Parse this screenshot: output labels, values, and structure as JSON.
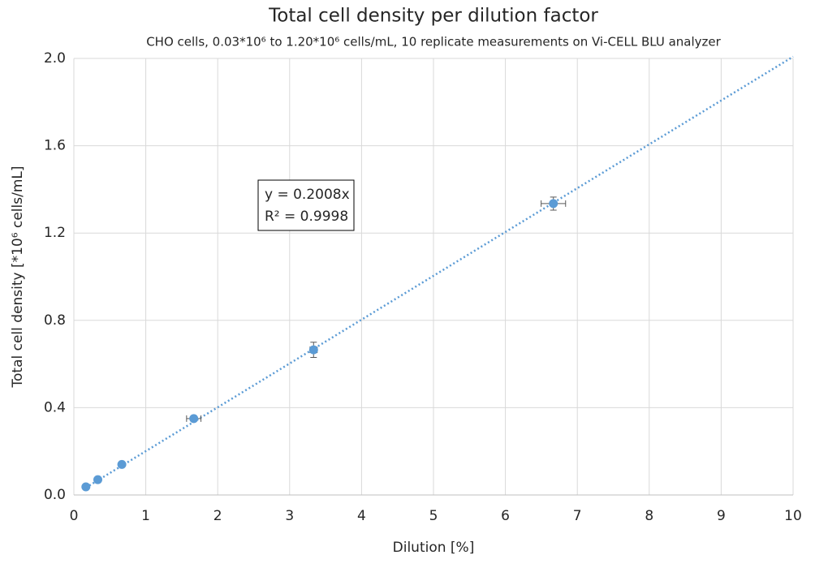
{
  "chart_data": {
    "type": "scatter",
    "title": "Total cell density per dilution factor",
    "subtitle": "CHO cells, 0.03*10⁶ to 1.20*10⁶ cells/mL, 10 replicate measurements on Vi-CELL BLU analyzer",
    "x_label": "Dilution [%]",
    "y_label": "Total cell density [*10⁶ cells/mL]",
    "x": [
      0.167,
      0.333,
      0.667,
      1.667,
      3.333,
      6.667
    ],
    "series": [
      {
        "color": "#5b9bd5",
        "values": [
          0.037,
          0.07,
          0.14,
          0.35,
          0.665,
          1.335
        ],
        "x_errors": [
          0.01,
          0.01,
          0.02,
          0.1,
          0.05,
          0.17
        ],
        "y_errors": [
          0.003,
          0.004,
          0.006,
          0.012,
          0.035,
          0.03
        ]
      }
    ],
    "trendline": {
      "slope": 0.2008,
      "color": "#5b9bd5"
    },
    "annotations": [
      "y = 0.2008x",
      "R² = 0.9998"
    ],
    "xlim": [
      0,
      10
    ],
    "xticks": [
      0,
      1,
      2,
      3,
      4,
      5,
      6,
      7,
      8,
      9,
      10
    ],
    "ylim": [
      0,
      2
    ],
    "yticks": [
      {
        "value": 0,
        "label": "0.0"
      },
      0.4,
      0.8,
      1.2,
      1.6,
      {
        "value": 2,
        "label": "2.0"
      }
    ],
    "grid": true
  }
}
